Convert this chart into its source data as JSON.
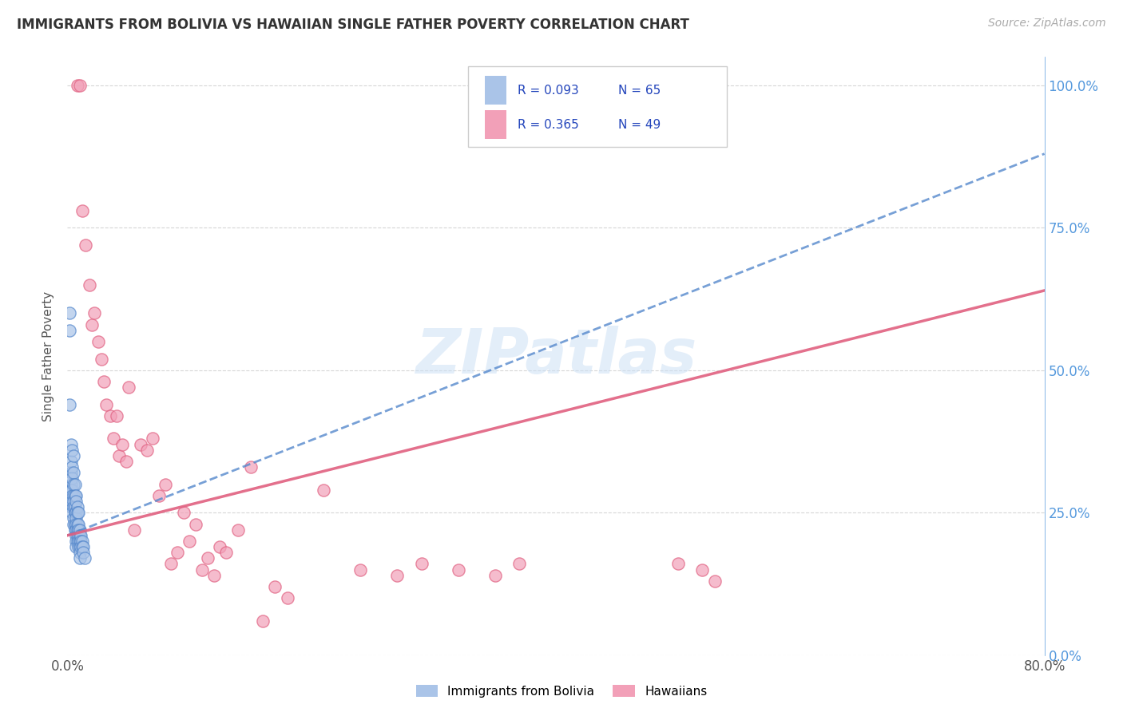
{
  "title": "IMMIGRANTS FROM BOLIVIA VS HAWAIIAN SINGLE FATHER POVERTY CORRELATION CHART",
  "source": "Source: ZipAtlas.com",
  "ylabel": "Single Father Poverty",
  "legend_label1": "Immigrants from Bolivia",
  "legend_label2": "Hawaiians",
  "blue_color": "#aac4e8",
  "pink_color": "#f2a0b8",
  "blue_line_color": "#5588cc",
  "pink_line_color": "#e06080",
  "legend_text_color": "#2244bb",
  "watermark": "ZIPatlas",
  "xlim": [
    0.0,
    0.8
  ],
  "ylim": [
    0.0,
    1.05
  ],
  "background_color": "#ffffff",
  "grid_color": "#cccccc",
  "bolivia_x": [
    0.002,
    0.002,
    0.002,
    0.003,
    0.003,
    0.003,
    0.003,
    0.003,
    0.003,
    0.004,
    0.004,
    0.004,
    0.004,
    0.004,
    0.004,
    0.004,
    0.005,
    0.005,
    0.005,
    0.005,
    0.005,
    0.005,
    0.005,
    0.005,
    0.006,
    0.006,
    0.006,
    0.006,
    0.006,
    0.006,
    0.007,
    0.007,
    0.007,
    0.007,
    0.007,
    0.007,
    0.007,
    0.007,
    0.007,
    0.008,
    0.008,
    0.008,
    0.008,
    0.008,
    0.008,
    0.009,
    0.009,
    0.009,
    0.009,
    0.009,
    0.009,
    0.01,
    0.01,
    0.01,
    0.01,
    0.01,
    0.01,
    0.011,
    0.011,
    0.011,
    0.012,
    0.012,
    0.013,
    0.013,
    0.014
  ],
  "bolivia_y": [
    0.6,
    0.57,
    0.44,
    0.37,
    0.34,
    0.32,
    0.3,
    0.29,
    0.26,
    0.36,
    0.33,
    0.31,
    0.29,
    0.28,
    0.27,
    0.25,
    0.35,
    0.32,
    0.3,
    0.28,
    0.27,
    0.26,
    0.24,
    0.23,
    0.3,
    0.28,
    0.26,
    0.25,
    0.23,
    0.22,
    0.28,
    0.27,
    0.25,
    0.24,
    0.23,
    0.22,
    0.21,
    0.2,
    0.19,
    0.26,
    0.25,
    0.23,
    0.22,
    0.21,
    0.2,
    0.25,
    0.23,
    0.22,
    0.21,
    0.2,
    0.19,
    0.22,
    0.21,
    0.2,
    0.19,
    0.18,
    0.17,
    0.21,
    0.2,
    0.19,
    0.2,
    0.19,
    0.19,
    0.18,
    0.17
  ],
  "hawaiians_x": [
    0.008,
    0.01,
    0.012,
    0.015,
    0.018,
    0.02,
    0.022,
    0.025,
    0.028,
    0.03,
    0.032,
    0.035,
    0.038,
    0.04,
    0.042,
    0.045,
    0.048,
    0.05,
    0.055,
    0.06,
    0.065,
    0.07,
    0.075,
    0.08,
    0.085,
    0.09,
    0.095,
    0.1,
    0.105,
    0.11,
    0.115,
    0.12,
    0.125,
    0.13,
    0.14,
    0.15,
    0.16,
    0.17,
    0.18,
    0.21,
    0.24,
    0.27,
    0.29,
    0.32,
    0.35,
    0.37,
    0.5,
    0.52,
    0.53
  ],
  "hawaiians_y": [
    1.0,
    1.0,
    0.78,
    0.72,
    0.65,
    0.58,
    0.6,
    0.55,
    0.52,
    0.48,
    0.44,
    0.42,
    0.38,
    0.42,
    0.35,
    0.37,
    0.34,
    0.47,
    0.22,
    0.37,
    0.36,
    0.38,
    0.28,
    0.3,
    0.16,
    0.18,
    0.25,
    0.2,
    0.23,
    0.15,
    0.17,
    0.14,
    0.19,
    0.18,
    0.22,
    0.33,
    0.06,
    0.12,
    0.1,
    0.29,
    0.15,
    0.14,
    0.16,
    0.15,
    0.14,
    0.16,
    0.16,
    0.15,
    0.13
  ],
  "blue_line_x0": 0.0,
  "blue_line_y0": 0.21,
  "blue_line_x1": 0.8,
  "blue_line_y1": 0.88,
  "pink_line_x0": 0.0,
  "pink_line_y0": 0.21,
  "pink_line_x1": 0.8,
  "pink_line_y1": 0.64
}
